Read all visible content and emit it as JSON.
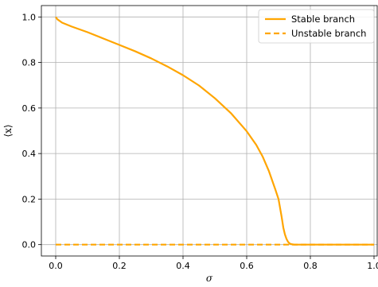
{
  "chart_data": {
    "type": "line",
    "xlabel": "σ",
    "ylabel": "⟨x⟩",
    "xlim": [
      -0.045,
      1.01
    ],
    "ylim": [
      -0.05,
      1.05
    ],
    "grid": true,
    "legend_position": "top-right",
    "x_ticks": [
      "0.0",
      "0.2",
      "0.4",
      "0.6",
      "0.8",
      "1.0"
    ],
    "y_ticks": [
      "0.0",
      "0.2",
      "0.4",
      "0.6",
      "0.8",
      "1.0"
    ],
    "colors": {
      "series": "#FFA500",
      "grid": "#b0b0b0"
    },
    "series": [
      {
        "name": "Stable branch",
        "style": "solid",
        "x": [
          0.0,
          0.005,
          0.02,
          0.05,
          0.1,
          0.15,
          0.2,
          0.25,
          0.3,
          0.35,
          0.4,
          0.45,
          0.5,
          0.55,
          0.6,
          0.63,
          0.65,
          0.67,
          0.69,
          0.7,
          0.71,
          0.715,
          0.72,
          0.725,
          0.73,
          0.735,
          0.74,
          0.75,
          0.8,
          0.85,
          0.9,
          0.95,
          1.0
        ],
        "y": [
          1.0,
          0.99,
          0.975,
          0.958,
          0.933,
          0.905,
          0.877,
          0.849,
          0.818,
          0.783,
          0.744,
          0.699,
          0.643,
          0.578,
          0.498,
          0.438,
          0.387,
          0.322,
          0.242,
          0.2,
          0.12,
          0.075,
          0.045,
          0.025,
          0.012,
          0.005,
          0.002,
          0.0,
          0.0,
          0.0,
          0.0,
          0.0,
          0.0
        ]
      },
      {
        "name": "Unstable branch",
        "style": "dashed",
        "x": [
          0.0,
          1.0
        ],
        "y": [
          0.0,
          0.0
        ]
      }
    ]
  }
}
